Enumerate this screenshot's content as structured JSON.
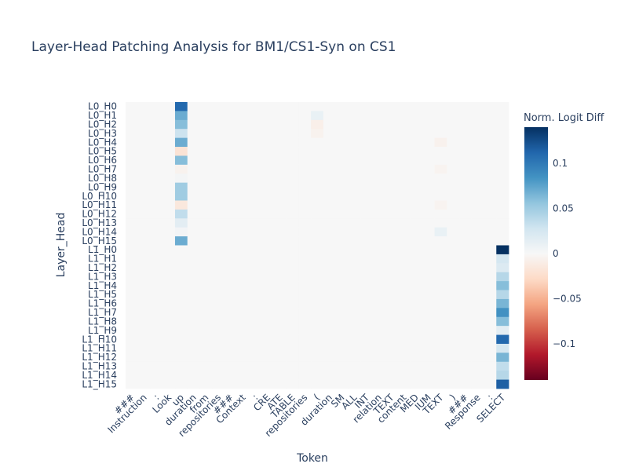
{
  "chart_data": {
    "type": "heatmap",
    "title": "Layer-Head Patching Analysis for BM1/CS1-Syn on CS1",
    "xlabel": "Token",
    "ylabel": "Layer_Head",
    "colorbar_title": "Norm. Logit Diff",
    "zmin": -0.14,
    "zmax": 0.14,
    "colorbar_ticks": [
      {
        "value": 0.1,
        "label": "0.1"
      },
      {
        "value": 0.05,
        "label": "0.05"
      },
      {
        "value": 0,
        "label": "0"
      },
      {
        "value": -0.05,
        "label": "−0.05"
      },
      {
        "value": -0.1,
        "label": "−0.1"
      }
    ],
    "colorscale": [
      [
        0.0,
        "#67001f"
      ],
      [
        0.1,
        "#b2182b"
      ],
      [
        0.2,
        "#d6604d"
      ],
      [
        0.3,
        "#f4a582"
      ],
      [
        0.4,
        "#fddbc7"
      ],
      [
        0.5,
        "#f7f7f7"
      ],
      [
        0.6,
        "#d1e5f0"
      ],
      [
        0.7,
        "#92c5de"
      ],
      [
        0.8,
        "#4393c3"
      ],
      [
        0.9,
        "#2166ac"
      ],
      [
        1.0,
        "#053061"
      ]
    ],
    "tokens": [
      "###",
      "Instruction",
      ":",
      "Look",
      "up",
      "duration",
      "from",
      "repositories",
      "###",
      "Context",
      ":",
      "CRE",
      "ATE",
      "TABLE",
      "repositories",
      "(",
      "duration",
      "SM",
      "ALL",
      "INT",
      "relation",
      "TEXT",
      "content",
      "MED",
      "IUM",
      "TEXT",
      ")",
      "###",
      "Response",
      ":",
      "SELECT"
    ],
    "layer_heads": [
      "L0_H0",
      "L0_H1",
      "L0_H2",
      "L0_H3",
      "L0_H4",
      "L0_H5",
      "L0_H6",
      "L0_H7",
      "L0_H8",
      "L0_H9",
      "L0_H10",
      "L0_H11",
      "L0_H12",
      "L0_H13",
      "L0_H14",
      "L0_H15",
      "L1_H0",
      "L1_H1",
      "L1_H2",
      "L1_H3",
      "L1_H4",
      "L1_H5",
      "L1_H6",
      "L1_H7",
      "L1_H8",
      "L1_H9",
      "L1_H10",
      "L1_H11",
      "L1_H12",
      "L1_H13",
      "L1_H14",
      "L1_H15"
    ],
    "default_value": 0,
    "cells": [
      {
        "head": "L0_H0",
        "token": "up",
        "value": 0.11
      },
      {
        "head": "L0_H1",
        "token": "up",
        "value": 0.07
      },
      {
        "head": "L0_H2",
        "token": "up",
        "value": 0.06
      },
      {
        "head": "L0_H3",
        "token": "up",
        "value": 0.03
      },
      {
        "head": "L0_H4",
        "token": "up",
        "value": 0.07
      },
      {
        "head": "L0_H5",
        "token": "up",
        "value": -0.02
      },
      {
        "head": "L0_H6",
        "token": "up",
        "value": 0.06
      },
      {
        "head": "L0_H7",
        "token": "up",
        "value": -0.005
      },
      {
        "head": "L0_H8",
        "token": "up",
        "value": 0.003
      },
      {
        "head": "L0_H9",
        "token": "up",
        "value": 0.05
      },
      {
        "head": "L0_H10",
        "token": "up",
        "value": 0.05
      },
      {
        "head": "L0_H11",
        "token": "up",
        "value": -0.015
      },
      {
        "head": "L0_H12",
        "token": "up",
        "value": 0.035
      },
      {
        "head": "L0_H13",
        "token": "up",
        "value": 0.015
      },
      {
        "head": "L0_H14",
        "token": "up",
        "value": 0.004
      },
      {
        "head": "L0_H15",
        "token": "up",
        "value": 0.07
      },
      {
        "head": "L0_H1",
        "token": "(",
        "value": 0.01
      },
      {
        "head": "L0_H2",
        "token": "(",
        "value": -0.008
      },
      {
        "head": "L0_H3",
        "token": "(",
        "value": -0.005
      },
      {
        "head": "L0_H4",
        "token": "TEXT",
        "value": -0.006
      },
      {
        "head": "L0_H7",
        "token": "TEXT",
        "value": -0.004
      },
      {
        "head": "L0_H11",
        "token": "TEXT",
        "value": -0.004
      },
      {
        "head": "L0_H14",
        "token": "TEXT",
        "value": 0.01
      },
      {
        "head": "L1_H0",
        "token": "SELECT",
        "value": 0.14
      },
      {
        "head": "L1_H1",
        "token": "SELECT",
        "value": 0.025
      },
      {
        "head": "L1_H2",
        "token": "SELECT",
        "value": 0.02
      },
      {
        "head": "L1_H3",
        "token": "SELECT",
        "value": 0.04
      },
      {
        "head": "L1_H4",
        "token": "SELECT",
        "value": 0.06
      },
      {
        "head": "L1_H5",
        "token": "SELECT",
        "value": 0.04
      },
      {
        "head": "L1_H6",
        "token": "SELECT",
        "value": 0.065
      },
      {
        "head": "L1_H7",
        "token": "SELECT",
        "value": 0.085
      },
      {
        "head": "L1_H8",
        "token": "SELECT",
        "value": 0.06
      },
      {
        "head": "L1_H9",
        "token": "SELECT",
        "value": 0.015
      },
      {
        "head": "L1_H10",
        "token": "SELECT",
        "value": 0.11
      },
      {
        "head": "L1_H11",
        "token": "SELECT",
        "value": 0.025
      },
      {
        "head": "L1_H12",
        "token": "SELECT",
        "value": 0.065
      },
      {
        "head": "L1_H13",
        "token": "SELECT",
        "value": 0.035
      },
      {
        "head": "L1_H14",
        "token": "SELECT",
        "value": 0.04
      },
      {
        "head": "L1_H15",
        "token": "SELECT",
        "value": 0.115
      }
    ]
  }
}
